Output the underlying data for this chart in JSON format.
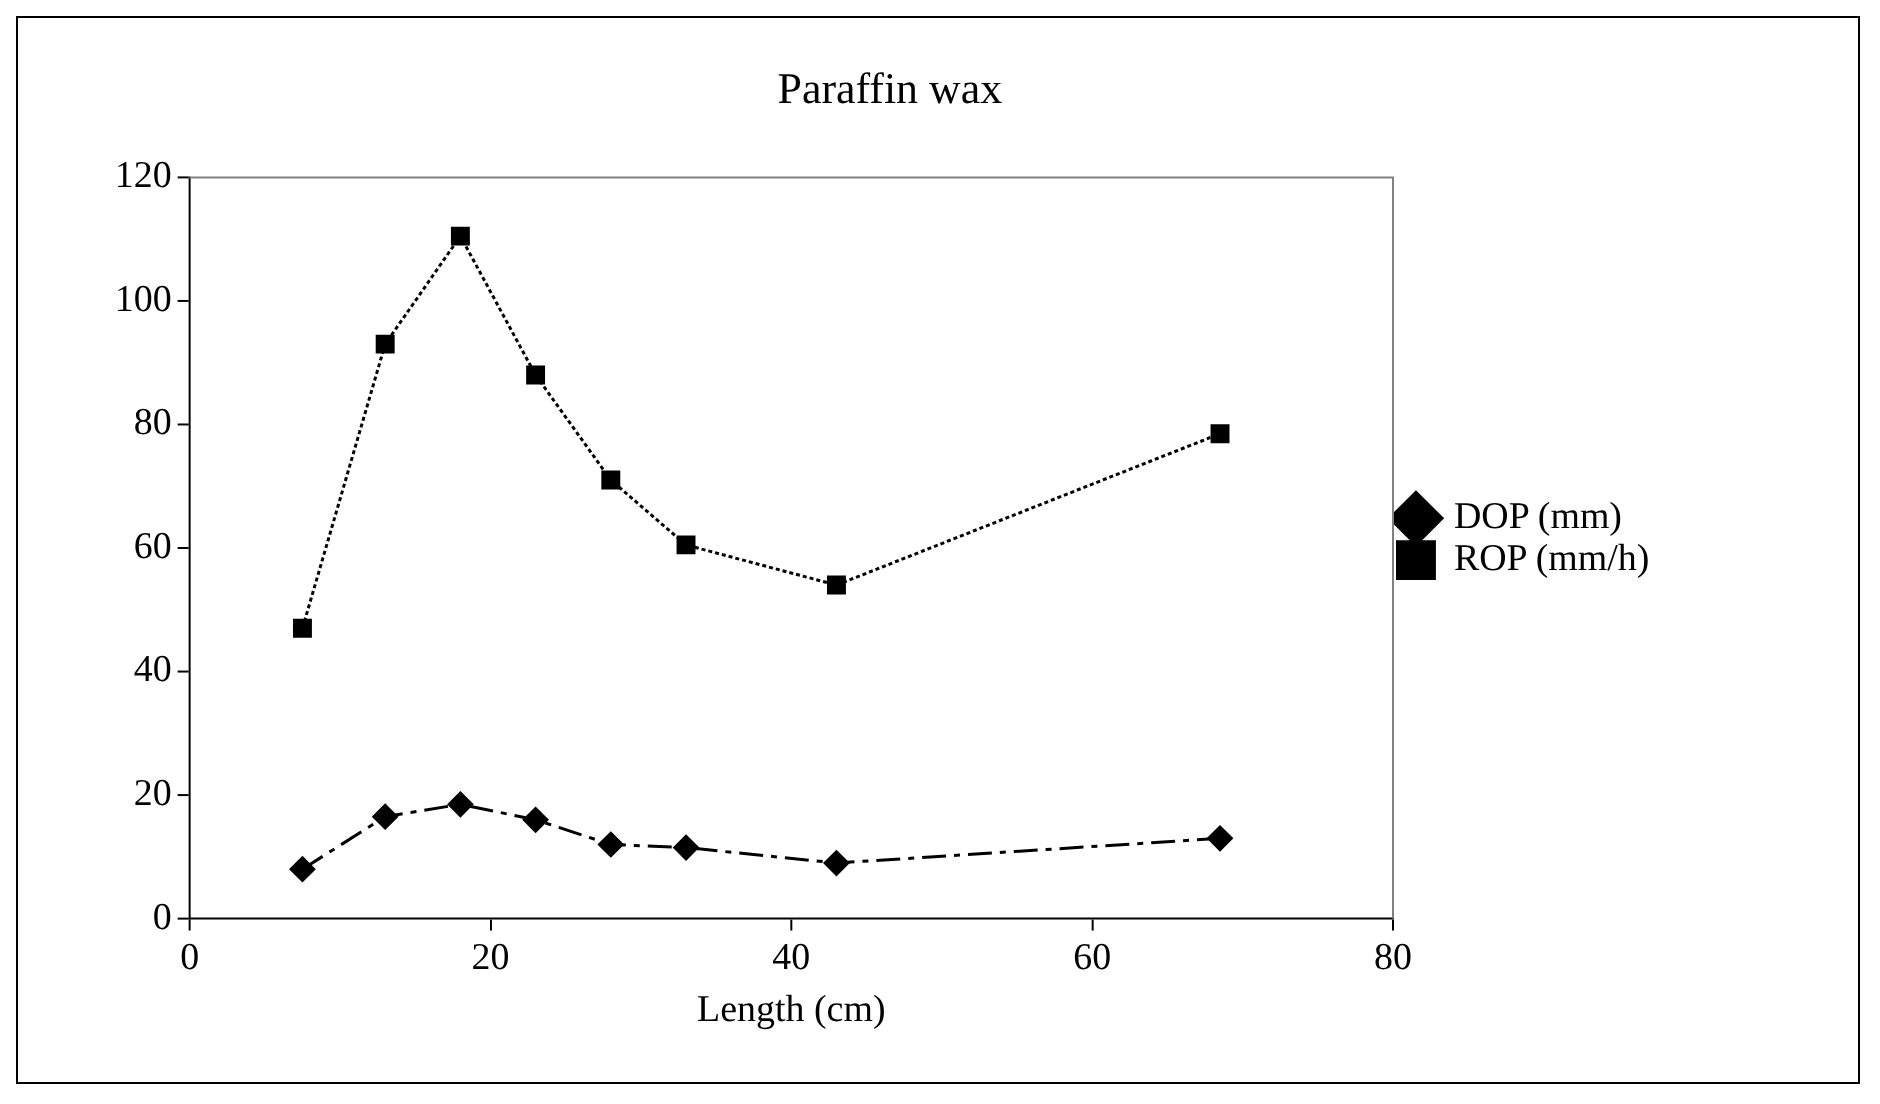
{
  "chart_data": {
    "type": "line",
    "title": "Paraffin wax",
    "xlabel": "Length (cm)",
    "xlim": [
      0,
      80
    ],
    "xticks": [
      0,
      20,
      40,
      60,
      80
    ],
    "ylim": [
      0,
      120
    ],
    "yticks": [
      0,
      20,
      40,
      60,
      80,
      100,
      120
    ],
    "grid": false,
    "legend": "right",
    "series": [
      {
        "name": "DOP (mm)",
        "color": "#000000",
        "marker": "diamond",
        "line_style": "dashed",
        "x": [
          7.5,
          13,
          18,
          23,
          28,
          33,
          43,
          68.5
        ],
        "values": [
          8,
          16.5,
          18.5,
          16,
          12,
          11.5,
          9,
          13
        ]
      },
      {
        "name": "ROP (mm/h)",
        "color": "#000000",
        "marker": "square",
        "line_style": "dotted",
        "x": [
          7.5,
          13,
          18,
          23,
          28,
          33,
          43,
          68.5
        ],
        "values": [
          47,
          93,
          110.5,
          88,
          71,
          60.5,
          54,
          78.5
        ]
      }
    ]
  }
}
